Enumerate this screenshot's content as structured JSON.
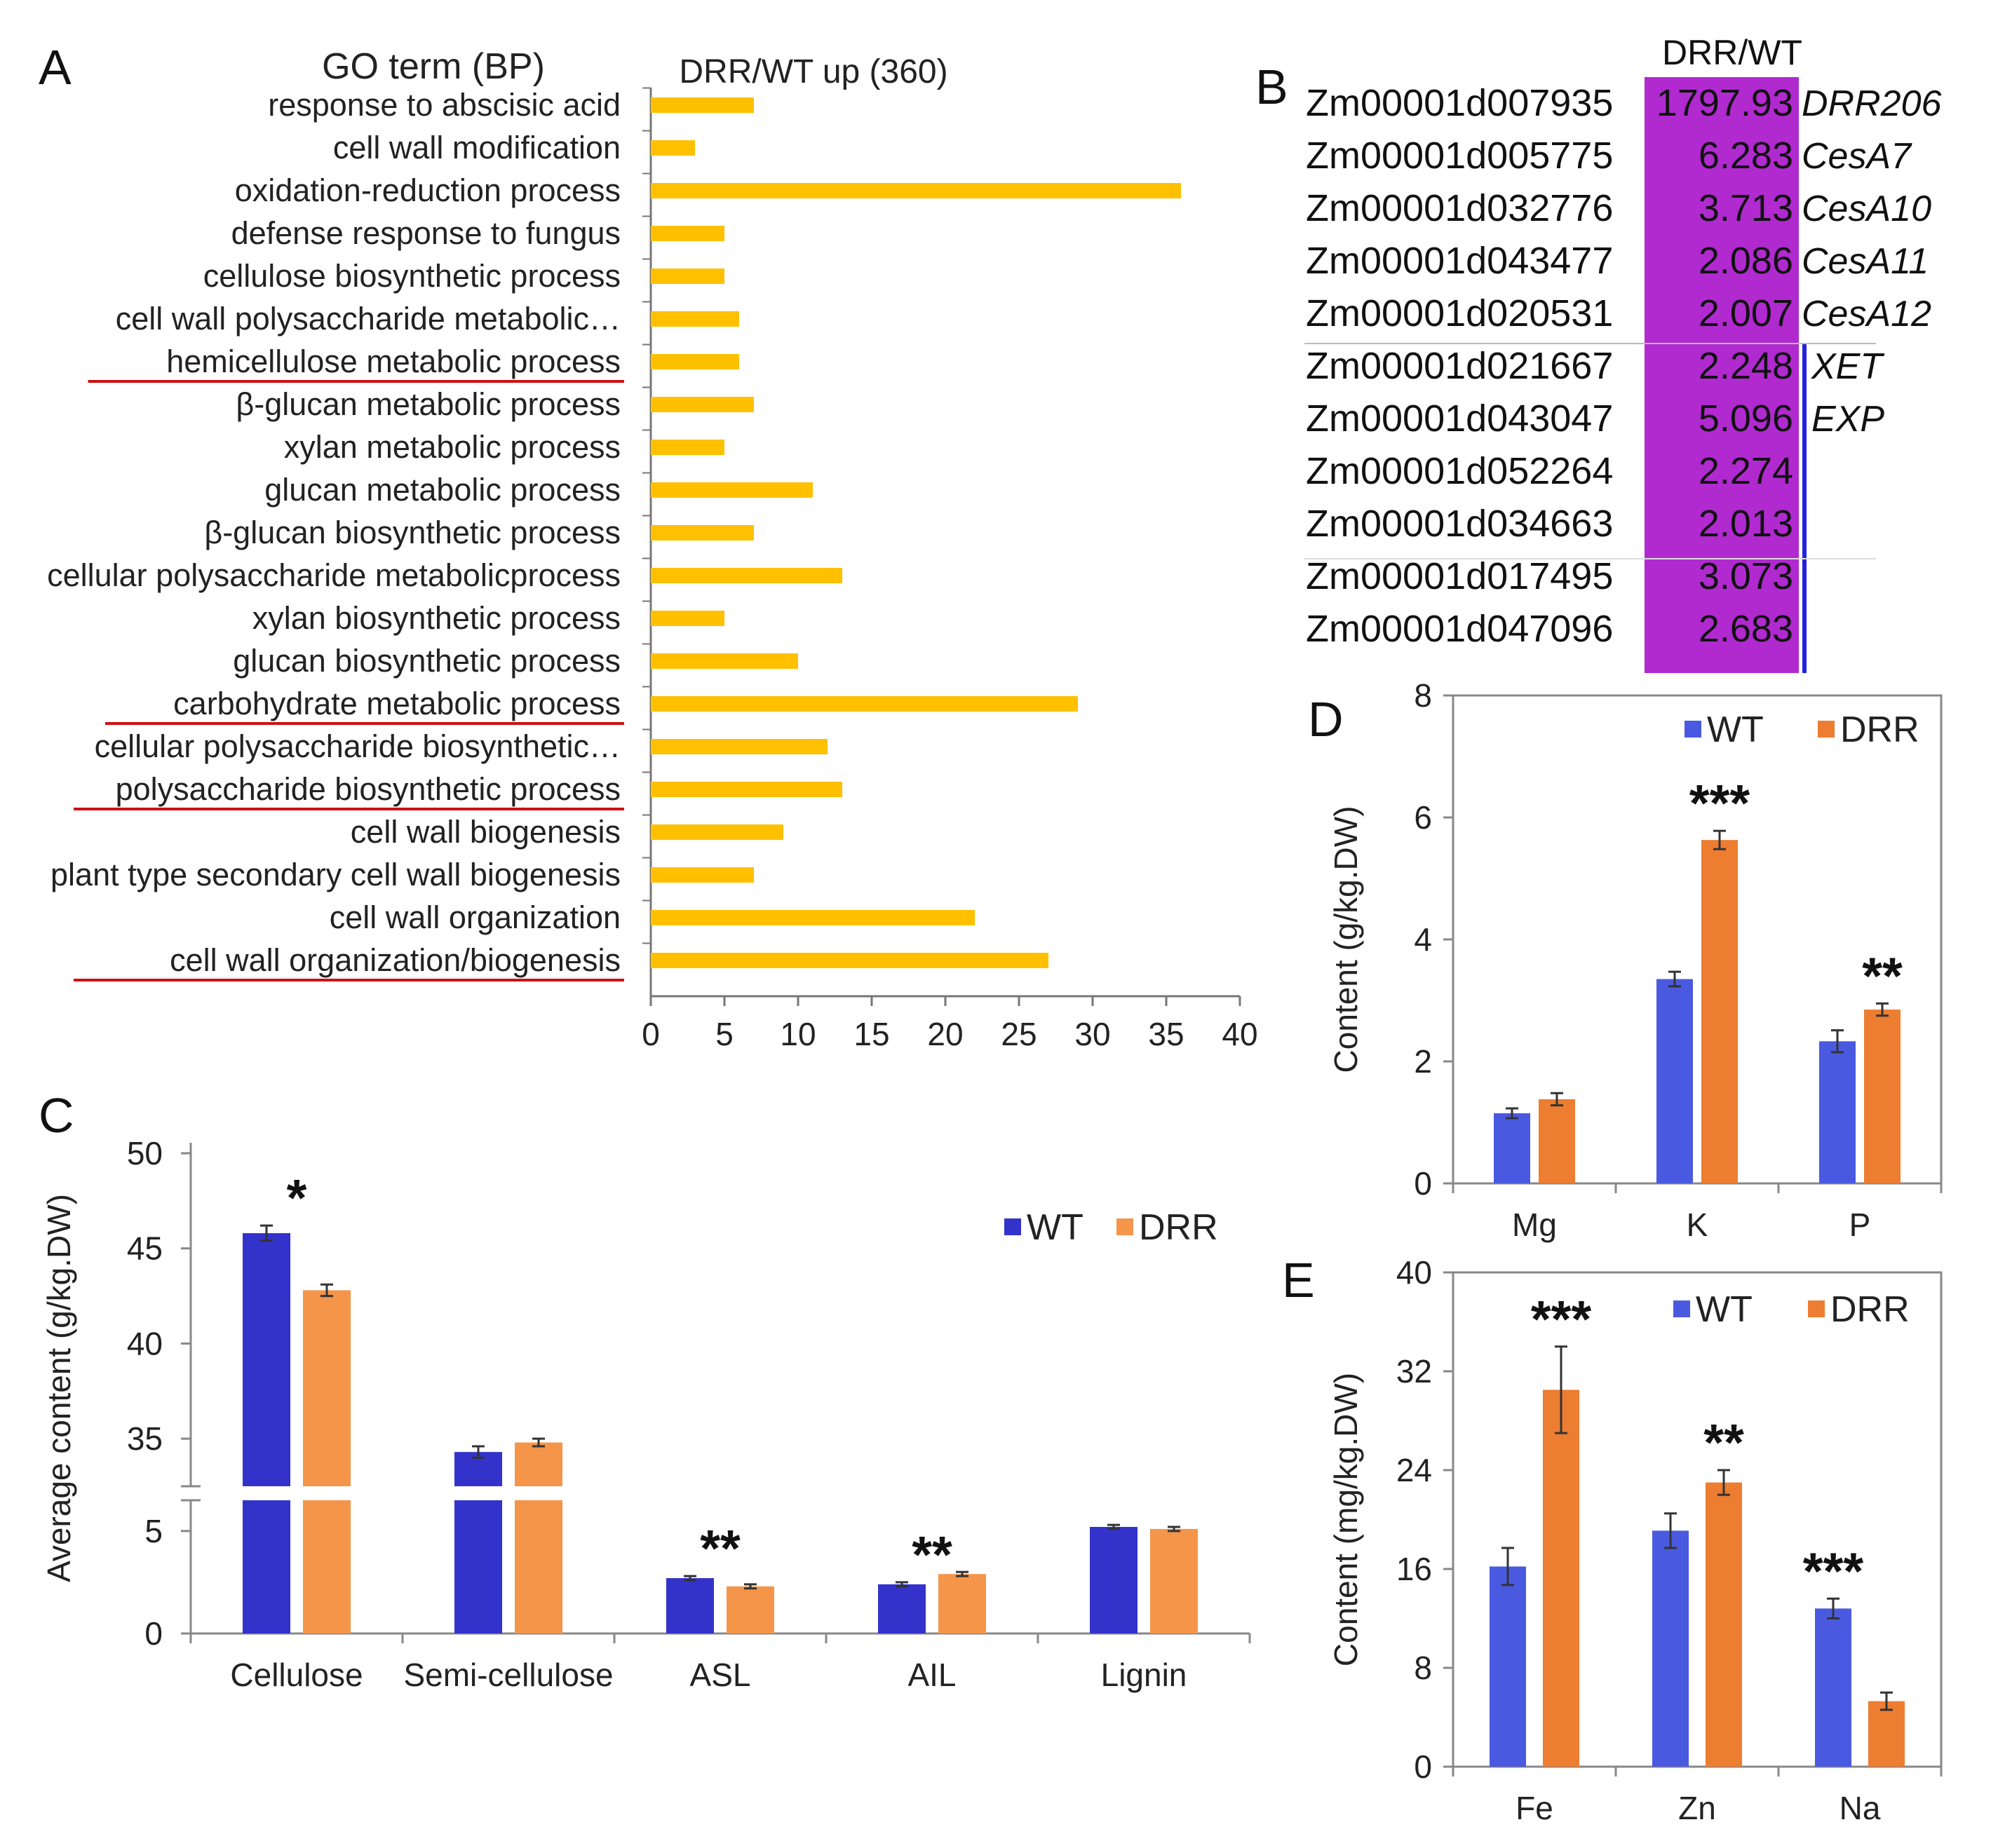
{
  "colors": {
    "go_bar": "#FFC000",
    "underline": "#CC1111",
    "wt": "#3333CC",
    "wt_light": "#4A5AE0",
    "drr": "#F4954A",
    "drr_dark": "#ED7D31",
    "table_fill": "#B02AD0",
    "table_line": "#2222DD"
  },
  "chart_data": [
    {
      "panel": "A",
      "type": "bar",
      "orientation": "horizontal",
      "row_header": "GO term (BP)",
      "title": "DRR/WT up (360)",
      "categories": [
        "response to abscisic acid",
        "cell wall modification",
        "oxidation-reduction process",
        "defense response to fungus",
        "cellulose biosynthetic process",
        "cell wall polysaccharide metabolic…",
        "hemicellulose metabolic process",
        "β-glucan metabolic process",
        "xylan metabolic process",
        "glucan metabolic process",
        "β-glucan biosynthetic process",
        "cellular polysaccharide metabolicprocess",
        "xylan biosynthetic process",
        "glucan biosynthetic process",
        "carbohydrate metabolic process",
        "cellular polysaccharide biosynthetic…",
        "polysaccharide biosynthetic process",
        "cell wall biogenesis",
        "plant type secondary cell wall biogenesis",
        "cell wall organization",
        "cell wall organization/biogenesis"
      ],
      "values": [
        7,
        3,
        36,
        5,
        5,
        6,
        6,
        7,
        5,
        11,
        7,
        13,
        5,
        10,
        29,
        12,
        13,
        9,
        7,
        22,
        27
      ],
      "underlined": [
        false,
        false,
        false,
        false,
        false,
        false,
        true,
        false,
        false,
        false,
        false,
        false,
        false,
        false,
        true,
        false,
        true,
        false,
        false,
        false,
        true
      ],
      "xlim": [
        0,
        40
      ],
      "xticks": [
        "0",
        "5",
        "10",
        "15",
        "20",
        "25",
        "30",
        "35",
        "40"
      ]
    },
    {
      "panel": "C",
      "type": "bar",
      "categories": [
        "Cellulose",
        "Semi-cellulose",
        "ASL",
        "AIL",
        "Lignin"
      ],
      "series": [
        {
          "name": "WT",
          "values": [
            45.8,
            34.3,
            2.7,
            2.4,
            5.2
          ],
          "errors": [
            0.4,
            0.3,
            0.1,
            0.1,
            0.1
          ]
        },
        {
          "name": "DRR",
          "values": [
            42.8,
            34.8,
            2.3,
            2.9,
            5.1
          ],
          "errors": [
            0.3,
            0.2,
            0.1,
            0.1,
            0.1
          ]
        }
      ],
      "significance": [
        "*",
        "",
        "**",
        "**",
        ""
      ],
      "ylabel": "Average content (g/kg.DW)",
      "yticks_lower": [
        "0",
        "5"
      ],
      "yticks_upper": [
        "35",
        "40",
        "45",
        "50"
      ],
      "axis_break": true,
      "ylim_lower": [
        0,
        6.5
      ],
      "ylim_upper": [
        32.5,
        50
      ],
      "legend": "top-right"
    },
    {
      "panel": "D",
      "type": "bar",
      "categories": [
        "Mg",
        "K",
        "P"
      ],
      "series": [
        {
          "name": "WT",
          "values": [
            1.15,
            3.35,
            2.33
          ],
          "errors": [
            0.08,
            0.12,
            0.18
          ]
        },
        {
          "name": "DRR",
          "values": [
            1.38,
            5.63,
            2.85
          ],
          "errors": [
            0.1,
            0.15,
            0.1
          ]
        }
      ],
      "significance": [
        "",
        "***",
        "**"
      ],
      "ylabel": "Content (g/kg.DW)",
      "yticks": [
        "0",
        "2",
        "4",
        "6",
        "8"
      ],
      "ylim": [
        0,
        8
      ],
      "legend": "top-right"
    },
    {
      "panel": "E",
      "type": "bar",
      "categories": [
        "Fe",
        "Zn",
        "Na"
      ],
      "series": [
        {
          "name": "WT",
          "values": [
            16.2,
            19.1,
            12.8
          ],
          "errors": [
            1.5,
            1.4,
            0.8
          ]
        },
        {
          "name": "DRR",
          "values": [
            30.5,
            23.0,
            5.3
          ],
          "errors": [
            3.5,
            1.0,
            0.7
          ]
        }
      ],
      "significance": [
        "***",
        "**",
        "***"
      ],
      "ylabel": "Content (mg/kg.DW)",
      "yticks": [
        "0",
        "8",
        "16",
        "24",
        "32",
        "40"
      ],
      "ylim": [
        0,
        40
      ],
      "legend": "top-right"
    },
    {
      "panel": "B",
      "type": "table",
      "header": "DRR/WT",
      "rows": [
        {
          "id": "Zm00001d007935",
          "value": "1797.93",
          "gene": "DRR206"
        },
        {
          "id": "Zm00001d005775",
          "value": "6.283",
          "gene": "CesA7"
        },
        {
          "id": "Zm00001d032776",
          "value": "3.713",
          "gene": "CesA10"
        },
        {
          "id": "Zm00001d043477",
          "value": "2.086",
          "gene": "CesA11"
        },
        {
          "id": "Zm00001d020531",
          "value": "2.007",
          "gene": "CesA12"
        },
        {
          "id": "Zm00001d021667",
          "value": "2.248",
          "gene": "XET"
        },
        {
          "id": "Zm00001d043047",
          "value": "5.096",
          "gene": "EXP"
        },
        {
          "id": "Zm00001d052264",
          "value": "2.274",
          "gene": ""
        },
        {
          "id": "Zm00001d034663",
          "value": "2.013",
          "gene": ""
        },
        {
          "id": "Zm00001d017495",
          "value": "3.073",
          "gene": ""
        },
        {
          "id": "Zm00001d047096",
          "value": "2.683",
          "gene": ""
        }
      ]
    }
  ],
  "panels": {
    "A": {
      "letter": "A"
    },
    "B": {
      "letter": "B"
    },
    "C": {
      "letter": "C"
    },
    "D": {
      "letter": "D"
    },
    "E": {
      "letter": "E"
    }
  }
}
